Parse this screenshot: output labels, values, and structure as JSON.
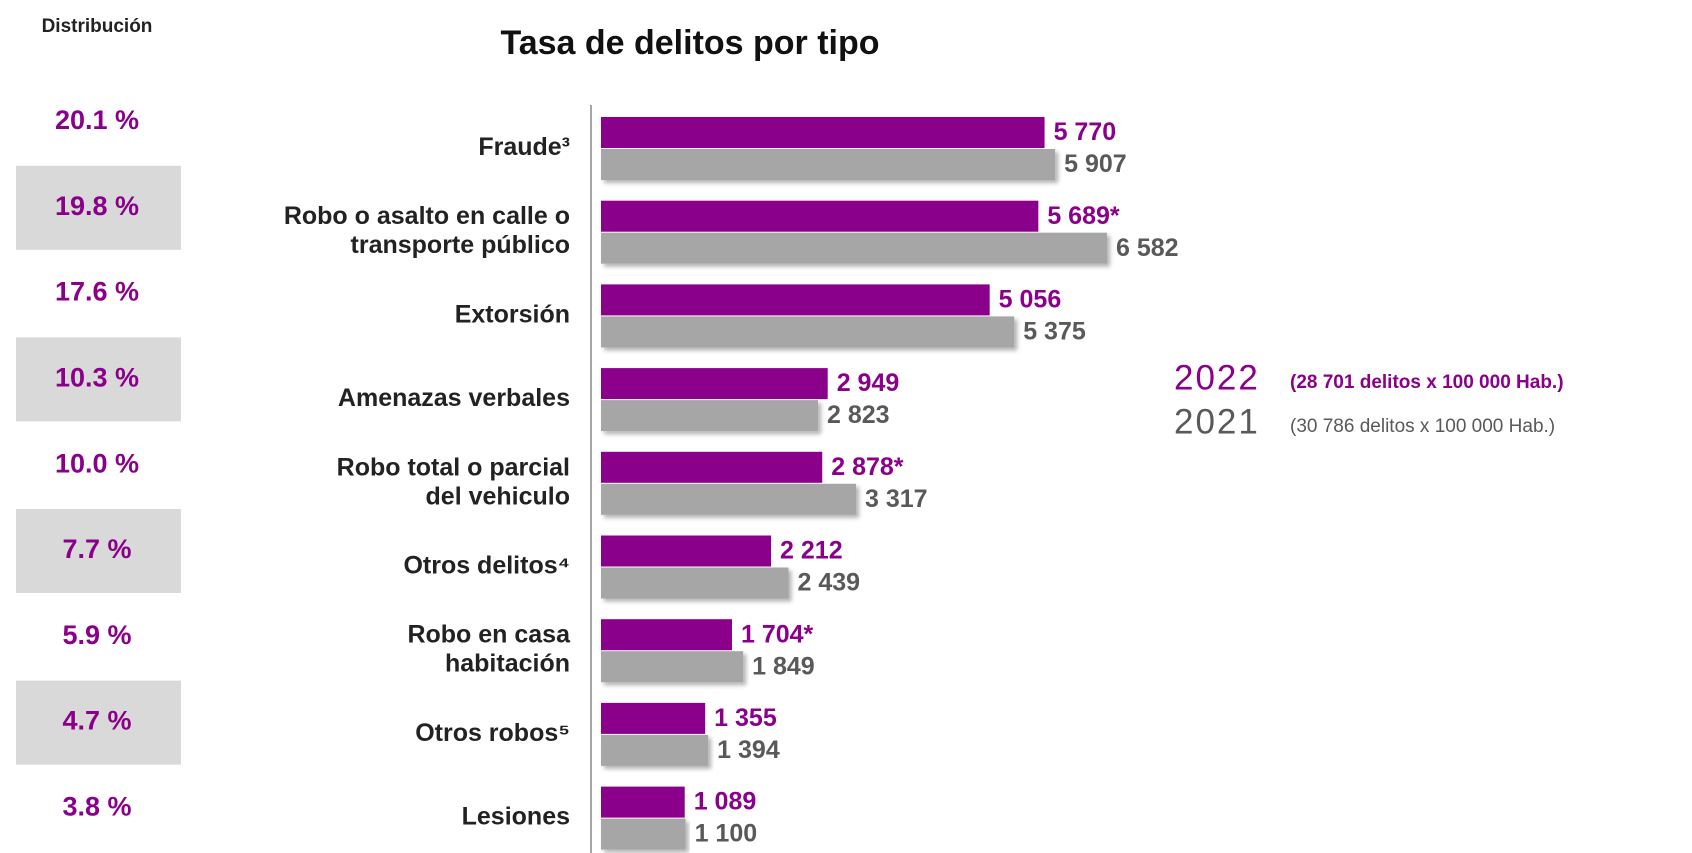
{
  "chart_data": {
    "type": "barh",
    "title": "Tasa de delitos por tipo",
    "categories": [
      [
        "Fraude³"
      ],
      [
        "Robo o asalto en calle o",
        "transporte público"
      ],
      [
        "Extorsión"
      ],
      [
        "Amenazas verbales"
      ],
      [
        "Robo total o parcial",
        "del vehiculo"
      ],
      [
        "Otros delitos⁴"
      ],
      [
        "Robo en casa",
        "habitación"
      ],
      [
        "Otros robos⁵"
      ],
      [
        "Lesiones"
      ]
    ],
    "series": [
      {
        "name": "2022",
        "note": "(28 701 delitos x 100 000 Hab.)",
        "color": "#8b008b",
        "values": [
          5770,
          5689,
          5056,
          2949,
          2878,
          2212,
          1704,
          1355,
          1089
        ],
        "value_labels": [
          "5 770",
          "5 689*",
          "5 056",
          "2 949",
          "2 878*",
          "2 212",
          "1 704*",
          "1 355",
          "1 089"
        ]
      },
      {
        "name": "2021",
        "note": "(30 786 delitos x 100 000 Hab.)",
        "color": "#a6a6a6",
        "values": [
          5907,
          6582,
          5375,
          2823,
          3317,
          2439,
          1849,
          1394,
          1100
        ],
        "value_labels": [
          "5 907",
          "6 582",
          "5 375",
          "2 823",
          "3 317",
          "2 439",
          "1 849",
          "1 394",
          "1 100"
        ]
      }
    ],
    "xlim": [
      0,
      8000
    ],
    "distribution": {
      "title": "Distribución",
      "values": [
        "20.1 %",
        "19.8 %",
        "17.6 %",
        "10.3 %",
        "10.0 %",
        "7.7 %",
        "5.9 %",
        "4.7 %",
        "3.8 %"
      ]
    }
  }
}
